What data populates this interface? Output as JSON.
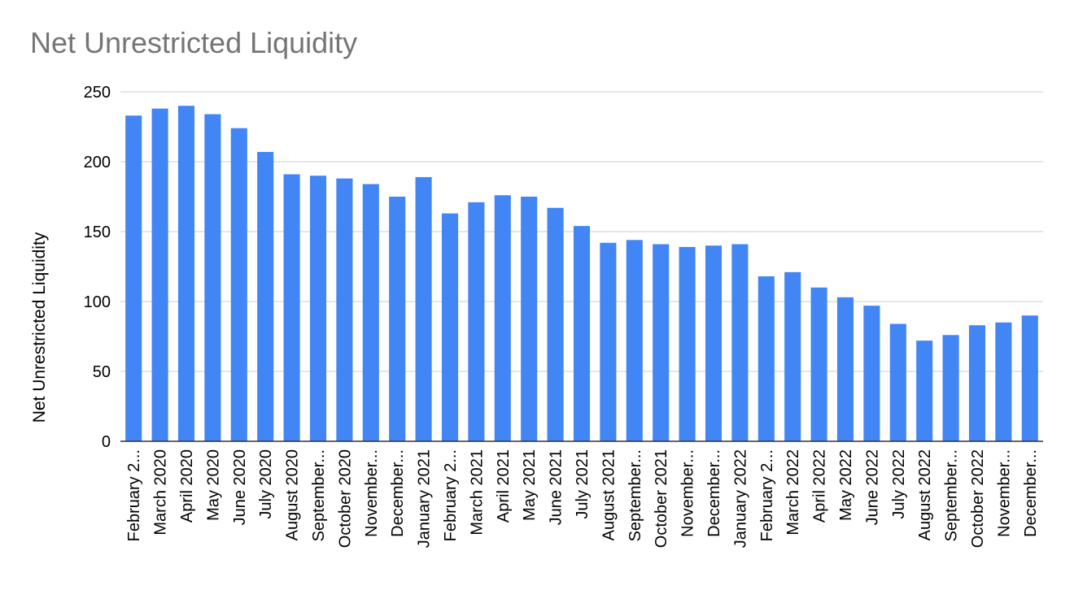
{
  "chart_data": {
    "type": "bar",
    "title": "Net Unrestricted Liquidity",
    "xlabel": "",
    "ylabel": "Net Unrestricted Liquidity",
    "ylim": [
      0,
      250
    ],
    "yticks": [
      0,
      50,
      100,
      150,
      200,
      250
    ],
    "grid": true,
    "legend": "none",
    "bar_color": "#4285f4",
    "categories": [
      "February 2...",
      "March 2020",
      "April 2020",
      "May 2020",
      "June 2020",
      "July 2020",
      "August 2020",
      "September...",
      "October 2020",
      "November...",
      "December...",
      "January 2021",
      "February 2...",
      "March 2021",
      "April 2021",
      "May 2021",
      "June 2021",
      "July 2021",
      "August 2021",
      "September...",
      "October 2021",
      "November...",
      "December...",
      "January 2022",
      "February 2...",
      "March 2022",
      "April 2022",
      "May 2022",
      "June 2022",
      "July 2022",
      "August 2022",
      "September...",
      "October 2022",
      "November...",
      "December..."
    ],
    "values": [
      233,
      238,
      240,
      234,
      224,
      207,
      191,
      190,
      188,
      184,
      175,
      189,
      163,
      171,
      176,
      175,
      167,
      154,
      142,
      144,
      141,
      139,
      140,
      141,
      118,
      121,
      110,
      103,
      97,
      84,
      72,
      76,
      83,
      85,
      90
    ]
  }
}
